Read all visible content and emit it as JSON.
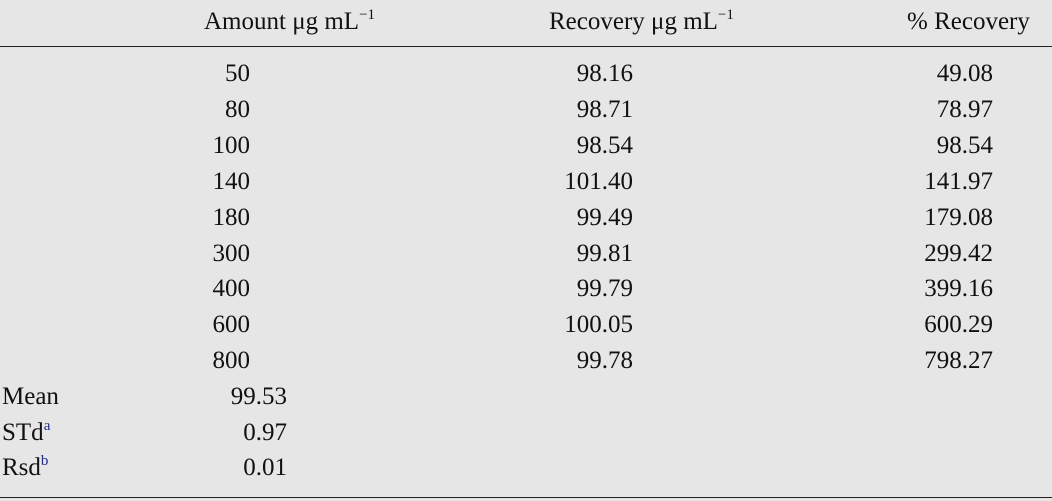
{
  "table": {
    "header": [
      {
        "text": "Amount μg mL",
        "sup": "−1"
      },
      {
        "text": "Recovery μg mL",
        "sup": "−1"
      },
      {
        "text": "% Recovery"
      }
    ],
    "rows": [
      [
        "50",
        "98.16",
        "49.08"
      ],
      [
        "80",
        "98.71",
        "78.97"
      ],
      [
        "100",
        "98.54",
        "98.54"
      ],
      [
        "140",
        "101.40",
        "141.97"
      ],
      [
        "180",
        "99.49",
        "179.08"
      ],
      [
        "300",
        "99.81",
        "299.42"
      ],
      [
        "400",
        "99.79",
        "399.16"
      ],
      [
        "600",
        "100.05",
        "600.29"
      ],
      [
        "800",
        "99.78",
        "798.27"
      ]
    ],
    "summary": [
      {
        "label": "Mean",
        "value": "99.53"
      },
      {
        "label": "STd",
        "sup": "a",
        "value": "0.97"
      },
      {
        "label": "Rsd",
        "sup": "b",
        "value": "0.01"
      }
    ]
  }
}
